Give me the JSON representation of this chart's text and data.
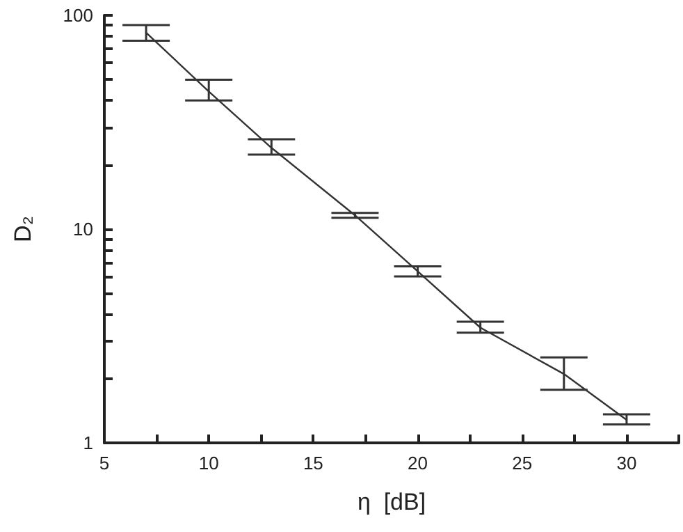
{
  "chart_data": {
    "type": "line",
    "xlabel": "η  [dB]",
    "ylabel": "D₂",
    "x": [
      7,
      10,
      13,
      17,
      20,
      23,
      27,
      30
    ],
    "series": [
      {
        "color": "#333333",
        "values": [
          83,
          44,
          24,
          11.6,
          6.35,
          3.46,
          2.1,
          1.28
        ],
        "errors": [
          [
            76,
            90
          ],
          [
            40,
            50
          ],
          [
            22.3,
            26.3
          ],
          [
            11.3,
            11.9
          ],
          [
            6,
            6.7
          ],
          [
            3.28,
            3.69
          ],
          [
            1.77,
            2.51
          ],
          [
            1.22,
            1.36
          ]
        ]
      }
    ],
    "log": "y",
    "xlim": [
      5,
      32.5
    ],
    "ylim": [
      1,
      100
    ],
    "xticks": [
      5,
      {
        "value": 7.5,
        "label": null
      },
      10,
      {
        "value": 12.5,
        "label": null
      },
      15,
      {
        "value": 17.5,
        "label": null
      },
      20,
      {
        "value": 22.5,
        "label": null
      },
      25,
      {
        "value": 27.5,
        "label": null
      },
      30,
      {
        "value": 32.5,
        "label": null
      }
    ],
    "yticks": [
      1,
      {
        "value": 2,
        "label": null
      },
      {
        "value": 3,
        "label": null
      },
      {
        "value": 4,
        "label": null
      },
      {
        "value": 5,
        "label": null
      },
      {
        "value": 6,
        "label": null
      },
      {
        "value": 7,
        "label": null
      },
      {
        "value": 8,
        "label": null
      },
      {
        "value": 9,
        "label": null
      },
      10,
      {
        "value": 20,
        "label": null
      },
      {
        "value": 30,
        "label": null
      },
      {
        "value": 40,
        "label": null
      },
      {
        "value": 50,
        "label": null
      },
      {
        "value": 60,
        "label": null
      },
      {
        "value": 70,
        "label": null
      },
      {
        "value": 80,
        "label": null
      },
      {
        "value": 90,
        "label": null
      },
      100
    ],
    "grid": false,
    "marker": "none",
    "line_style": "solid"
  }
}
